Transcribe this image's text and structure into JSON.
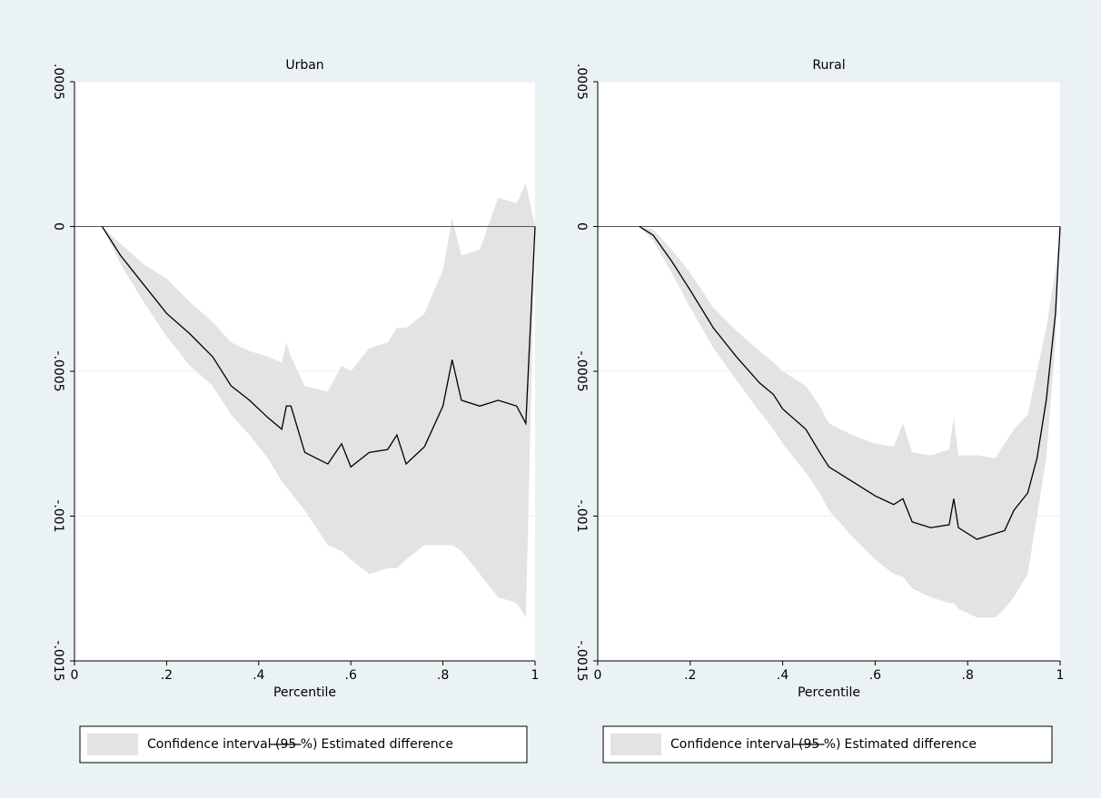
{
  "chart_data": [
    {
      "type": "line",
      "title": "Urban",
      "x_label": "Percentile",
      "x": [
        0.06,
        0.1,
        0.15,
        0.2,
        0.25,
        0.3,
        0.34,
        0.38,
        0.42,
        0.45,
        0.46,
        0.47,
        0.5,
        0.55,
        0.58,
        0.6,
        0.64,
        0.68,
        0.7,
        0.72,
        0.76,
        0.8,
        0.82,
        0.84,
        0.88,
        0.92,
        0.96,
        0.98,
        1
      ],
      "series": [
        {
          "name": "Confidence interval (95 %)",
          "color": "#e3e3e3",
          "lower": [
            0,
            -0.00013,
            -0.00026,
            -0.00038,
            -0.00048,
            -0.00055,
            -0.00065,
            -0.00072,
            -0.0008,
            -0.00088,
            -0.0009,
            -0.00092,
            -0.00098,
            -0.0011,
            -0.00112,
            -0.00115,
            -0.0012,
            -0.00118,
            -0.00118,
            -0.00115,
            -0.0011,
            -0.0011,
            -0.0011,
            -0.00112,
            -0.0012,
            -0.00128,
            -0.0013,
            -0.00135,
            0
          ],
          "upper": [
            0,
            -6e-05,
            -0.00013,
            -0.00018,
            -0.00026,
            -0.00033,
            -0.0004,
            -0.00043,
            -0.00045,
            -0.00047,
            -0.0004,
            -0.00045,
            -0.00055,
            -0.00057,
            -0.00048,
            -0.0005,
            -0.00042,
            -0.0004,
            -0.00035,
            -0.00035,
            -0.0003,
            -0.00015,
            3e-05,
            -0.0001,
            -8e-05,
            0.0001,
            8e-05,
            0.00015,
            0
          ]
        },
        {
          "name": "Estimated difference",
          "color": "#000000",
          "values": [
            0,
            -0.0001,
            -0.0002,
            -0.0003,
            -0.00037,
            -0.00045,
            -0.00055,
            -0.0006,
            -0.00066,
            -0.0007,
            -0.00062,
            -0.00062,
            -0.00078,
            -0.00082,
            -0.00075,
            -0.00083,
            -0.00078,
            -0.00077,
            -0.00072,
            -0.00082,
            -0.00076,
            -0.00062,
            -0.00046,
            -0.0006,
            -0.00062,
            -0.0006,
            -0.00062,
            -0.00068,
            0
          ]
        }
      ],
      "xlim": [
        0,
        1
      ],
      "ylim": [
        -0.0015,
        0.0005
      ],
      "xticks": [
        0,
        {
          "value": 0.2,
          "label": ".2"
        },
        {
          "value": 0.4,
          "label": ".4"
        },
        {
          "value": 0.6,
          "label": ".6"
        },
        {
          "value": 0.8,
          "label": ".8"
        },
        1
      ],
      "yticks": [
        {
          "value": -0.0015,
          "label": "-.0015"
        },
        {
          "value": -0.001,
          "label": "-.001"
        },
        {
          "value": -0.0005,
          "label": "-.0005"
        },
        0,
        {
          "value": 0.0005,
          "label": ".0005"
        }
      ],
      "grid": true,
      "reference_line": 0
    },
    {
      "type": "line",
      "title": "Rural",
      "x_label": "Percentile",
      "x": [
        0.09,
        0.12,
        0.16,
        0.2,
        0.25,
        0.3,
        0.35,
        0.38,
        0.4,
        0.45,
        0.48,
        0.5,
        0.55,
        0.6,
        0.64,
        0.66,
        0.68,
        0.72,
        0.76,
        0.77,
        0.78,
        0.82,
        0.86,
        0.88,
        0.9,
        0.93,
        0.95,
        0.97,
        0.99,
        1
      ],
      "series": [
        {
          "name": "Confidence interval (95 %)",
          "color": "#e3e3e3",
          "lower": [
            0,
            -5e-05,
            -0.00016,
            -0.00028,
            -0.00042,
            -0.00053,
            -0.00064,
            -0.0007,
            -0.00075,
            -0.00085,
            -0.00092,
            -0.00098,
            -0.00107,
            -0.00115,
            -0.0012,
            -0.00121,
            -0.00125,
            -0.00128,
            -0.0013,
            -0.0013,
            -0.00132,
            -0.00135,
            -0.00135,
            -0.00132,
            -0.00128,
            -0.0012,
            -0.001,
            -0.0008,
            -0.0004,
            0
          ],
          "upper": [
            0,
            -1e-05,
            -8e-05,
            -0.00016,
            -0.00028,
            -0.00036,
            -0.00043,
            -0.00047,
            -0.0005,
            -0.00055,
            -0.00062,
            -0.00068,
            -0.00072,
            -0.00075,
            -0.00076,
            -0.00068,
            -0.00078,
            -0.00079,
            -0.00077,
            -0.00066,
            -0.00079,
            -0.00079,
            -0.0008,
            -0.00075,
            -0.0007,
            -0.00065,
            -0.0005,
            -0.00035,
            -0.00015,
            0
          ]
        },
        {
          "name": "Estimated difference",
          "color": "#000000",
          "values": [
            0,
            -3e-05,
            -0.00012,
            -0.00022,
            -0.00035,
            -0.00045,
            -0.00054,
            -0.00058,
            -0.00063,
            -0.0007,
            -0.00078,
            -0.00083,
            -0.00088,
            -0.00093,
            -0.00096,
            -0.00094,
            -0.00102,
            -0.00104,
            -0.00103,
            -0.00094,
            -0.00104,
            -0.00108,
            -0.00106,
            -0.00105,
            -0.00098,
            -0.00092,
            -0.0008,
            -0.0006,
            -0.0003,
            0
          ]
        }
      ],
      "xlim": [
        0,
        1
      ],
      "ylim": [
        -0.0015,
        0.0005
      ],
      "xticks": [
        0,
        {
          "value": 0.2,
          "label": ".2"
        },
        {
          "value": 0.4,
          "label": ".4"
        },
        {
          "value": 0.6,
          "label": ".6"
        },
        {
          "value": 0.8,
          "label": ".8"
        },
        1
      ],
      "yticks": [
        {
          "value": -0.0015,
          "label": "-.0015"
        },
        {
          "value": -0.001,
          "label": "-.001"
        },
        {
          "value": -0.0005,
          "label": "-.0005"
        },
        0,
        {
          "value": 0.0005,
          "label": ".0005"
        }
      ],
      "grid": true,
      "reference_line": 0
    }
  ]
}
